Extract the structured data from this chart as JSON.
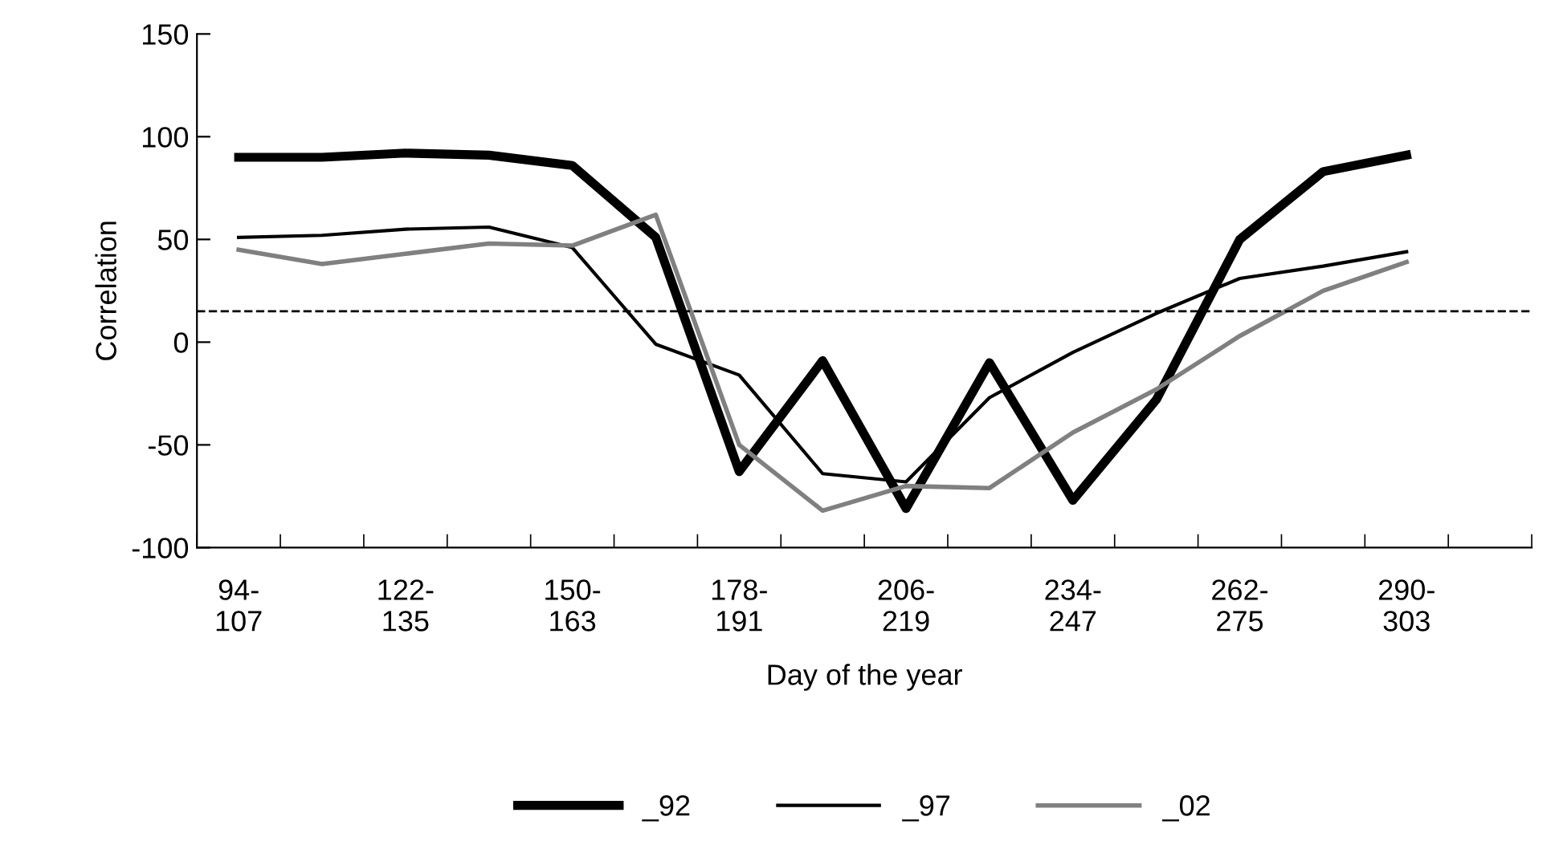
{
  "chart_data": {
    "type": "line",
    "xlabel": "Day of the year",
    "ylabel": "Correlation",
    "categories": [
      "94-\n107",
      null,
      "122-\n135",
      null,
      "150-\n163",
      null,
      "178-\n191",
      null,
      "206-\n219",
      null,
      "234-\n247",
      null,
      "262-\n275",
      null,
      "290-\n303",
      null
    ],
    "series": [
      {
        "name": "_92",
        "color": "#000000",
        "values": [
          90,
          90,
          92,
          91,
          86,
          51,
          -63,
          -9,
          -81,
          -10,
          -77,
          -28,
          50,
          83,
          91,
          null
        ]
      },
      {
        "name": "_97",
        "color": "#000000",
        "values": [
          51,
          52,
          55,
          56,
          46,
          -1,
          -16,
          -64,
          -68,
          -27,
          -5,
          14,
          31,
          37,
          44,
          null
        ]
      },
      {
        "name": "_02",
        "color": "#808080",
        "values": [
          45,
          38,
          43,
          48,
          47,
          62,
          -50,
          -82,
          -70,
          -71,
          -44,
          -23,
          3,
          25,
          39,
          null
        ]
      }
    ],
    "ylim": [
      -100,
      150
    ],
    "yticks": [
      -100,
      -50,
      0,
      50,
      100,
      150
    ],
    "ref_lines": [
      {
        "axis": "y",
        "value": 15,
        "color": "#000000",
        "line_style": "dashed"
      }
    ],
    "grid": false,
    "legend": "bottom",
    "marker": "none",
    "line_style": "solid"
  }
}
